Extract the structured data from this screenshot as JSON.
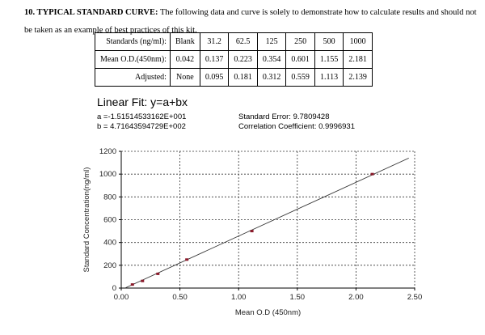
{
  "heading": {
    "bold": "10. TYPICAL STANDARD CURVE:",
    "text": " The following data and curve is solely to demonstrate how to calculate results and should not be taken as an example of best practices of this kit."
  },
  "table": {
    "rows": [
      [
        "Standards (ng/ml):",
        "Blank",
        "31.2",
        "62.5",
        "125",
        "250",
        "500",
        "1000"
      ],
      [
        "Mean O.D.(450nm):",
        "0.042",
        "0.137",
        "0.223",
        "0.354",
        "0.601",
        "1.155",
        "2.181"
      ],
      [
        "Adjusted:",
        "None",
        "0.095",
        "0.181",
        "0.312",
        "0.559",
        "1.113",
        "2.139"
      ]
    ]
  },
  "fit": {
    "title": "Linear Fit: y=a+bx",
    "a": "a =-1.51514533162E+001",
    "b": "b = 4.71643594729E+002",
    "se": "Standard Error: 9.7809428",
    "cc": "Correlation Coefficient: 0.9996931"
  },
  "chart_data": {
    "type": "scatter",
    "xlabel": "Mean O.D (450nm)",
    "ylabel": "Standard Concentration(ng/ml)",
    "xlim": [
      0,
      2.5
    ],
    "ylim": [
      0,
      1200
    ],
    "xticks": [
      "0.00",
      "0.50",
      "1.00",
      "1.50",
      "2.00",
      "2.50"
    ],
    "yticks": [
      "0",
      "200",
      "400",
      "600",
      "800",
      "1000",
      "1200"
    ],
    "grid": true,
    "points": {
      "x": [
        0.095,
        0.181,
        0.312,
        0.559,
        1.113,
        2.139
      ],
      "y": [
        31.2,
        62.5,
        125,
        250,
        500,
        1000
      ]
    },
    "fit_line": {
      "intercept": -15.1514533162,
      "slope": 471.643594729,
      "x_range": [
        0.032,
        2.45
      ]
    },
    "colors": {
      "points": "#8b1a2a",
      "line": "#333333",
      "grid": "#333333"
    }
  }
}
